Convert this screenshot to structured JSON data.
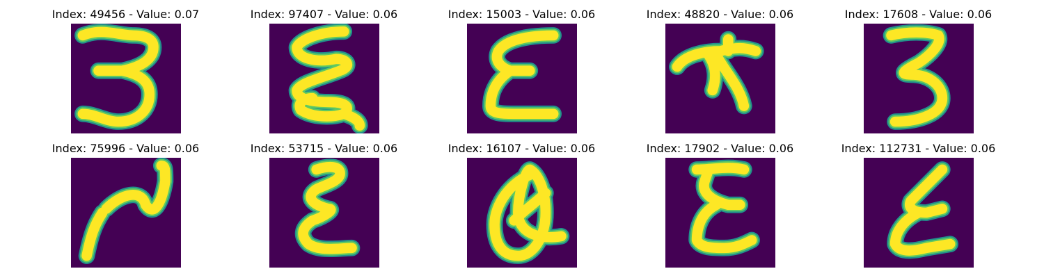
{
  "figure": {
    "colormap": "viridis",
    "colors": {
      "background": "#440154",
      "edge": "#21918c",
      "mid": "#5ec962",
      "stroke": "#fde725"
    },
    "panels": [
      {
        "title": "Index: 49456 - Value: 0.07"
      },
      {
        "title": "Index: 97407 - Value: 0.06"
      },
      {
        "title": "Index: 15003 - Value: 0.06"
      },
      {
        "title": "Index: 48820 - Value: 0.06"
      },
      {
        "title": "Index: 17608 - Value: 0.06"
      },
      {
        "title": "Index: 75996 - Value: 0.06"
      },
      {
        "title": "Index: 53715 - Value: 0.06"
      },
      {
        "title": "Index: 16107 - Value: 0.06"
      },
      {
        "title": "Index: 17902 - Value: 0.06"
      },
      {
        "title": "Index: 112731 - Value: 0.06"
      }
    ]
  }
}
